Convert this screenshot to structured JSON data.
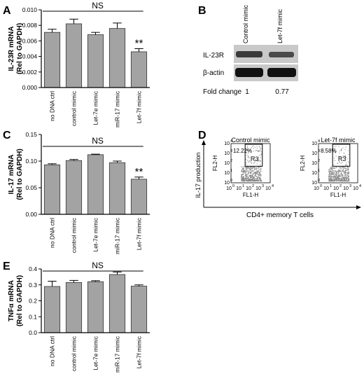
{
  "panels": {
    "A": "A",
    "B": "B",
    "C": "C",
    "D": "D",
    "E": "E"
  },
  "chart_data": [
    {
      "id": "A",
      "type": "bar",
      "ylabel": "IL-23R mRNA\n(Rel to GAPDH)",
      "ylabel_lines": [
        "IL-23R mRNA",
        "(Rel to GAPDH)"
      ],
      "categories": [
        "no DNA ctrl",
        "control mimic",
        "Let-7e mimic",
        "miR-17 mimic",
        "Let-7f mimic"
      ],
      "values": [
        0.0071,
        0.0082,
        0.0068,
        0.0076,
        0.0046
      ],
      "errors": [
        0.0004,
        0.0006,
        0.0003,
        0.0007,
        0.0004
      ],
      "ylim": [
        0,
        0.01
      ],
      "yticks": [
        "0.000",
        "0.002",
        "0.004",
        "0.006",
        "0.008",
        "0.010"
      ],
      "ytick_values": [
        0,
        0.002,
        0.004,
        0.006,
        0.008,
        0.01
      ],
      "ns_label": "NS",
      "significance": [
        "",
        "",
        "",
        "",
        "**"
      ]
    },
    {
      "id": "C",
      "type": "bar",
      "ylabel_lines": [
        "IL-17 mRNA",
        "(Rel to GAPDH)"
      ],
      "categories": [
        "no DNA ctrl",
        "control mimic",
        "Let-7e mimic",
        "miR-17 mimic",
        "Let-7f mimic"
      ],
      "values": [
        0.093,
        0.101,
        0.112,
        0.097,
        0.066
      ],
      "errors": [
        0.002,
        0.002,
        0.001,
        0.003,
        0.004
      ],
      "ylim": [
        0,
        0.15
      ],
      "yticks": [
        "0.00",
        "0.05",
        "0.10",
        "0.15"
      ],
      "ytick_values": [
        0,
        0.05,
        0.1,
        0.15
      ],
      "ns_label": "NS",
      "significance": [
        "",
        "",
        "",
        "",
        "**"
      ]
    },
    {
      "id": "E",
      "type": "bar",
      "ylabel_lines": [
        "TNFα mRNA",
        "(Rel to GAPDH)"
      ],
      "categories": [
        "no DNA ctrl",
        "control mimic",
        "Let-7e mimic",
        "miR-17 mimic",
        "Let-7f mimic"
      ],
      "values": [
        0.29,
        0.315,
        0.32,
        0.365,
        0.292
      ],
      "errors": [
        0.033,
        0.013,
        0.006,
        0.016,
        0.008
      ],
      "ylim": [
        0,
        0.4
      ],
      "yticks": [
        "0.0",
        "0.1",
        "0.2",
        "0.3",
        "0.4"
      ],
      "ytick_values": [
        0,
        0.1,
        0.2,
        0.3,
        0.4
      ],
      "ns_label": "NS",
      "significance": [
        "",
        "",
        "",
        "",
        ""
      ]
    }
  ],
  "western": {
    "columns": [
      "Control mimic",
      "Let-7f mimic"
    ],
    "rows": [
      "IL-23R",
      "β-actin"
    ],
    "fold_label": "Fold change",
    "fold_values": [
      "1",
      "0.77"
    ]
  },
  "flow": {
    "plots": [
      {
        "title": "Control mimic",
        "percent": "12.22%",
        "gate": "R3"
      },
      {
        "title": "Let-7f mimic",
        "percent": "8.58%",
        "gate": "R3"
      }
    ],
    "ylabel": "FL2-H",
    "xlabel": "FL1-H",
    "y_outer": "IL-17 production",
    "x_outer": "CD4+ memory T cells",
    "tick_base": [
      "10",
      "10",
      "10",
      "10",
      "10"
    ],
    "tick_exp": [
      "0",
      "1",
      "2",
      "3",
      "4"
    ]
  }
}
